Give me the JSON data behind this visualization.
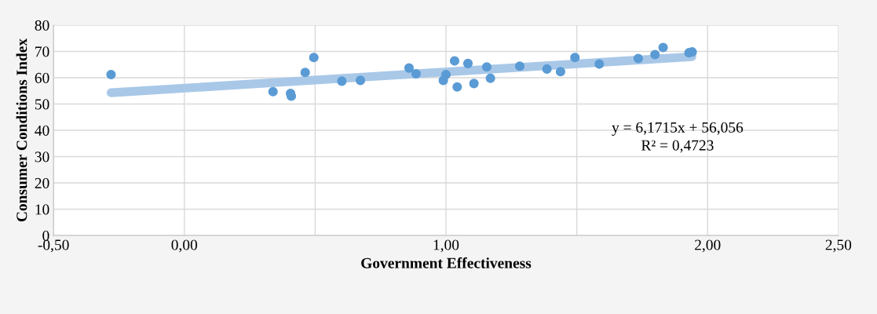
{
  "chart_data": {
    "type": "scatter",
    "xlabel": "Government Effectiveness",
    "ylabel": "Consumer Conditions Index",
    "xlim": [
      -0.5,
      2.5
    ],
    "xticks": [
      {
        "value": -0.5,
        "label": "-0,50"
      },
      {
        "value": 0,
        "label": "0,00"
      },
      {
        "value": 0.5,
        "label": null
      },
      {
        "value": 1,
        "label": "1,00"
      },
      {
        "value": 1.5,
        "label": null
      },
      {
        "value": 2,
        "label": "2,00"
      },
      {
        "value": 2.5,
        "label": "2,50"
      }
    ],
    "ylim": [
      0,
      80
    ],
    "yticks": [
      0,
      10,
      20,
      30,
      40,
      50,
      60,
      70,
      80
    ],
    "grid": true,
    "marker": "circle",
    "annotations": [
      "y = 6,1715x + 56,056",
      "R² = 0,4723"
    ],
    "series": [
      {
        "type": "line",
        "marker": "none",
        "color": "#a9c8e8",
        "x": [
          -0.28,
          1.94
        ],
        "values": [
          54.3,
          68.0
        ]
      },
      {
        "color": "#5b9bd5",
        "x": [
          -0.28,
          0.339,
          0.406,
          0.409,
          0.462,
          0.495,
          0.602,
          0.673,
          0.859,
          0.886,
          0.99,
          1.0,
          1.033,
          1.043,
          1.084,
          1.107,
          1.156,
          1.17,
          1.282,
          1.386,
          1.438,
          1.493,
          1.586,
          1.735,
          1.799,
          1.83,
          1.929,
          1.941
        ],
        "values": [
          61.2,
          54.7,
          54.0,
          53.0,
          62.0,
          67.7,
          58.7,
          59.0,
          63.7,
          61.5,
          59.0,
          61.2,
          66.4,
          56.5,
          65.4,
          57.8,
          64.1,
          59.8,
          64.4,
          63.3,
          62.3,
          67.7,
          65.2,
          67.3,
          68.8,
          71.5,
          69.5,
          69.8
        ]
      }
    ]
  }
}
